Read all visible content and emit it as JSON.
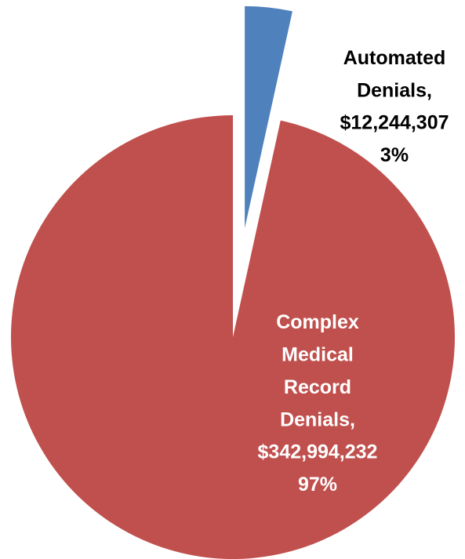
{
  "chart_data": {
    "type": "pie",
    "categories": [
      "Automated Denials,",
      "Complex Medical Record Denials,"
    ],
    "values": [
      12244307,
      342994232
    ],
    "value_labels": [
      "$12,244,307",
      "$342,994,232"
    ],
    "percentages": [
      3,
      97
    ],
    "percentage_labels": [
      "3%",
      "97%"
    ],
    "colors": [
      "#4f81bd",
      "#c0504d"
    ],
    "label_colors": [
      "#000000",
      "#ffffff"
    ]
  }
}
